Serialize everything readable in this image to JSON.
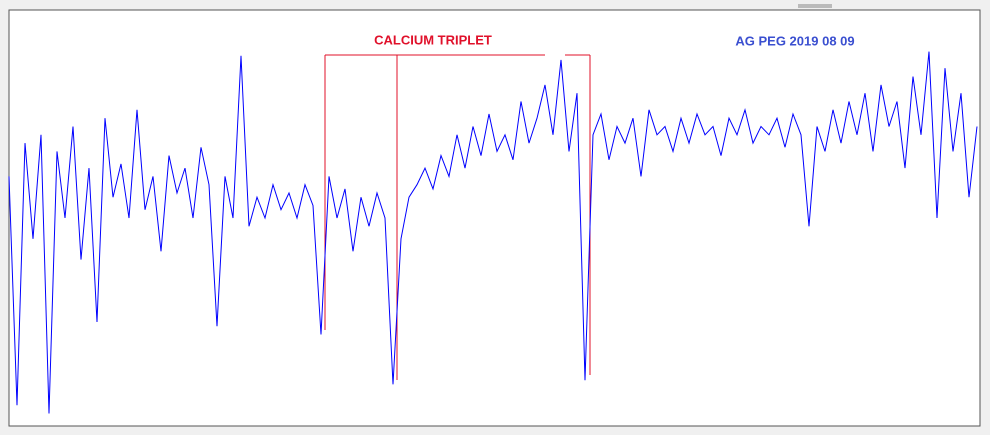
{
  "chart_data": {
    "type": "line",
    "title": "AG PEG 2019 08 09",
    "annotation": "CALCIUM  TRIPLET",
    "color": "#0000ff",
    "ylim": [
      0,
      100
    ],
    "values": [
      60,
      5,
      68,
      45,
      70,
      3,
      66,
      50,
      72,
      40,
      62,
      25,
      74,
      55,
      63,
      50,
      76,
      52,
      60,
      42,
      65,
      56,
      62,
      50,
      67,
      58,
      24,
      60,
      50,
      89,
      48,
      55,
      50,
      58,
      52,
      56,
      50,
      58,
      53,
      22,
      60,
      50,
      57,
      42,
      55,
      48,
      56,
      50,
      10,
      45,
      55,
      58,
      62,
      57,
      65,
      60,
      70,
      62,
      72,
      65,
      75,
      66,
      70,
      64,
      78,
      68,
      74,
      82,
      70,
      88,
      66,
      80,
      11,
      70,
      75,
      64,
      72,
      68,
      74,
      60,
      76,
      70,
      72,
      66,
      74,
      68,
      75,
      70,
      72,
      65,
      74,
      70,
      76,
      68,
      72,
      70,
      74,
      67,
      75,
      70,
      48,
      72,
      66,
      76,
      68,
      78,
      70,
      80,
      66,
      82,
      72,
      78,
      62,
      84,
      70,
      90,
      50,
      86,
      66,
      80,
      55,
      72
    ]
  }
}
